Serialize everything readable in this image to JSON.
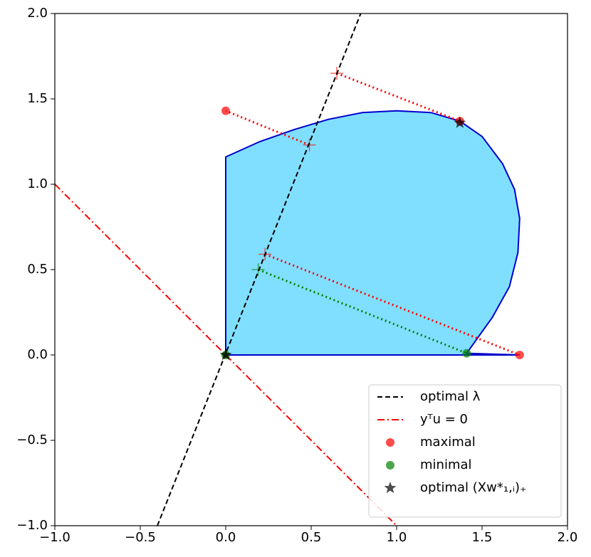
{
  "chart_data": {
    "type": "line",
    "xlim": [
      -1,
      2
    ],
    "ylim": [
      -1,
      2
    ],
    "xticks": [
      {
        "value": -1,
        "label": "−1.0"
      },
      {
        "value": -0.5,
        "label": "−0.5"
      },
      {
        "value": 0,
        "label": "0.0"
      },
      {
        "value": 0.5,
        "label": "0.5"
      },
      {
        "value": 1,
        "label": "1.0"
      },
      {
        "value": 1.5,
        "label": "1.5"
      },
      {
        "value": 2,
        "label": "2.0"
      }
    ],
    "yticks": [
      {
        "value": -1,
        "label": "−1.0"
      },
      {
        "value": -0.5,
        "label": "−0.5"
      },
      {
        "value": 0,
        "label": "0.0"
      },
      {
        "value": 0.5,
        "label": "0.5"
      },
      {
        "value": 1,
        "label": "1.0"
      },
      {
        "value": 1.5,
        "label": "1.5"
      },
      {
        "value": 2,
        "label": "2.0"
      }
    ],
    "legend": "lower right",
    "region": {
      "color": "#80dfff",
      "edge": "#0000cd",
      "x": [
        0,
        0,
        0.2,
        0.4,
        0.6,
        0.8,
        1.0,
        1.2,
        1.37,
        1.5,
        1.62,
        1.69,
        1.72,
        1.71,
        1.66,
        1.56,
        1.41,
        1.72,
        0
      ],
      "y": [
        0,
        1.16,
        1.25,
        1.32,
        1.38,
        1.42,
        1.43,
        1.42,
        1.37,
        1.28,
        1.12,
        0.97,
        0.8,
        0.6,
        0.4,
        0.22,
        0.01,
        0,
        0
      ]
    },
    "segments": [
      {
        "color": "#ff0000",
        "x": [
          0.49,
          0
        ],
        "y": [
          1.23,
          1.43
        ]
      },
      {
        "color": "#ff0000",
        "x": [
          0.65,
          1.37
        ],
        "y": [
          1.65,
          1.37
        ]
      },
      {
        "color": "#ff0000",
        "x": [
          0.23,
          1.72
        ],
        "y": [
          0.59,
          0
        ]
      },
      {
        "color": "#008000",
        "x": [
          0.19,
          1.41
        ],
        "y": [
          0.5,
          0.01
        ]
      }
    ],
    "series": [
      {
        "name": "optimal λ",
        "color": "#000000",
        "style": "dashed",
        "x": [
          -0.4,
          0.79
        ],
        "y": [
          -1,
          2
        ]
      },
      {
        "name": "yᵀu = 0",
        "color": "#ff0000",
        "style": "dashdot",
        "x": [
          -1,
          1
        ],
        "y": [
          1,
          -1
        ]
      },
      {
        "name": "maximal",
        "color": "#ff0000",
        "marker": "circle",
        "x": [
          0,
          1.72,
          1.37
        ],
        "y": [
          1.43,
          0,
          1.37
        ]
      },
      {
        "name": "minimal",
        "color": "#008000",
        "marker": "circle",
        "x": [
          0,
          1.41
        ],
        "y": [
          0,
          0.01
        ]
      },
      {
        "name": "optimal (Xw*₁,ᵢ)₊",
        "color": "#000000",
        "marker": "star",
        "x": [
          0,
          1.37
        ],
        "y": [
          0,
          1.36
        ]
      }
    ]
  }
}
